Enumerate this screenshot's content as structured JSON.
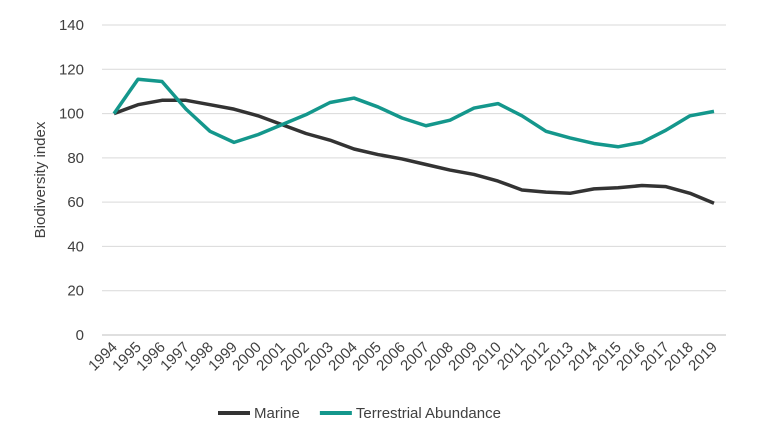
{
  "chart_data": {
    "type": "line",
    "y_label": "Biodiversity index",
    "categories": [
      "1994",
      "1995",
      "1996",
      "1997",
      "1998",
      "1999",
      "2000",
      "2001",
      "2002",
      "2003",
      "2004",
      "2005",
      "2006",
      "2007",
      "2008",
      "2009",
      "2010",
      "2011",
      "2012",
      "2013",
      "2014",
      "2015",
      "2016",
      "2017",
      "2018",
      "2019"
    ],
    "series": [
      {
        "name": "Marine",
        "color": "#333333",
        "values": [
          100,
          104,
          106,
          106,
          104,
          102,
          99,
          95,
          91,
          88,
          84,
          81.5,
          79.5,
          77,
          74.5,
          72.5,
          69.5,
          65.5,
          64.5,
          64,
          66,
          66.5,
          67.5,
          67,
          64,
          59.5
        ]
      },
      {
        "name": "Terrestrial Abundance",
        "color": "#14978c",
        "values": [
          100,
          115.5,
          114.5,
          102,
          92,
          87,
          90.5,
          95,
          99.5,
          105,
          107,
          103,
          98,
          94.5,
          97,
          102.5,
          104.5,
          99,
          92,
          89,
          86.5,
          85,
          87,
          92.5,
          99,
          101
        ]
      }
    ],
    "ylim": [
      0,
      140
    ],
    "yticks": [
      0,
      20,
      40,
      60,
      80,
      100,
      120,
      140
    ],
    "grid": true
  }
}
